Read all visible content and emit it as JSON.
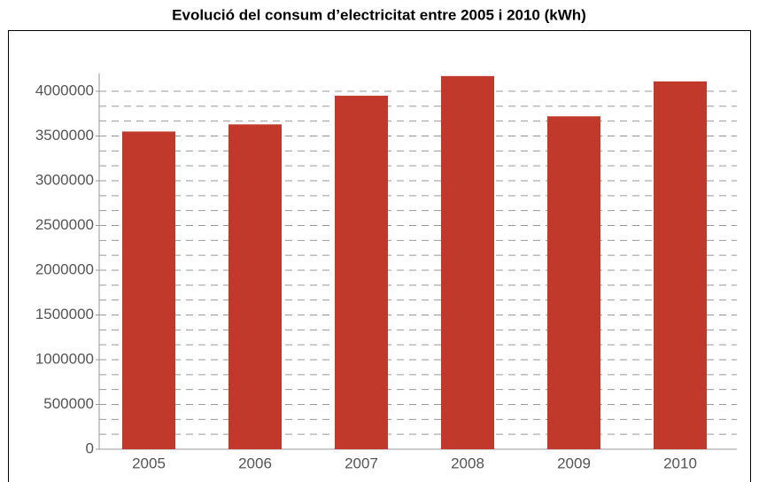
{
  "chart_data": {
    "type": "bar",
    "title": "Evolució del consum d’electricitat entre 2005 i 2010 (kWh)",
    "categories": [
      "2005",
      "2006",
      "2007",
      "2008",
      "2009",
      "2010"
    ],
    "values": [
      3550000,
      3630000,
      3950000,
      4170000,
      3720000,
      4110000
    ],
    "color": "#c0392b",
    "ylim": [
      0,
      4200000
    ],
    "yticks": [
      0,
      500000,
      1000000,
      1500000,
      2000000,
      2500000,
      3000000,
      3500000,
      4000000
    ],
    "minor_divisions": 3,
    "grid": true
  }
}
